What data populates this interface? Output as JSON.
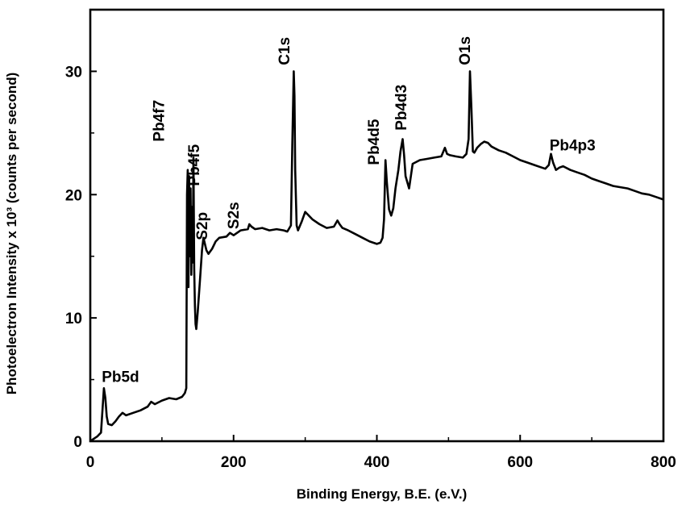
{
  "chart_data": {
    "type": "line",
    "xlabel": "Binding Energy, B.E. (e.V.)",
    "ylabel": "Photoelectron Intensity x 10³ (counts per second)",
    "xlim": [
      0,
      800
    ],
    "ylim": [
      0,
      35
    ],
    "xticks": [
      0,
      200,
      400,
      600,
      800
    ],
    "yticks": [
      0,
      10,
      20,
      30
    ],
    "x_tick_labels": [
      "0",
      "200",
      "400",
      "600",
      "800"
    ],
    "y_tick_labels": [
      "0",
      "10",
      "20",
      "30"
    ],
    "grid": false,
    "line_color": "#000000",
    "series": [
      {
        "x": [
          0,
          5,
          10,
          15,
          17,
          19,
          21,
          23,
          25,
          30,
          35,
          40,
          45,
          50,
          60,
          70,
          80,
          85,
          90,
          100,
          110,
          120,
          128,
          132,
          134,
          135,
          136,
          137,
          138,
          139,
          140,
          141,
          142,
          143,
          144,
          145,
          146,
          147,
          148,
          150,
          153,
          156,
          158,
          160,
          162,
          165,
          170,
          175,
          180,
          190,
          195,
          200,
          210,
          220,
          222,
          225,
          230,
          240,
          250,
          260,
          270,
          275,
          280,
          282,
          284,
          285,
          286,
          288,
          290,
          295,
          300,
          305,
          310,
          320,
          330,
          340,
          345,
          348,
          352,
          360,
          370,
          380,
          390,
          400,
          405,
          408,
          410,
          412,
          414,
          417,
          420,
          423,
          426,
          430,
          433,
          436,
          438,
          440,
          445,
          450,
          460,
          470,
          480,
          490,
          495,
          498,
          502,
          510,
          520,
          525,
          528,
          530,
          532,
          534,
          536,
          540,
          545,
          550,
          555,
          560,
          570,
          580,
          590,
          600,
          610,
          620,
          630,
          635,
          640,
          643,
          646,
          650,
          655,
          660,
          670,
          680,
          690,
          700,
          710,
          720,
          730,
          740,
          750,
          760,
          770,
          780,
          790,
          800
        ],
        "values": [
          0,
          0.2,
          0.4,
          0.7,
          2.5,
          4.3,
          3.5,
          2,
          1.4,
          1.3,
          1.6,
          2,
          2.3,
          2.1,
          2.3,
          2.5,
          2.8,
          3.2,
          3,
          3.3,
          3.5,
          3.4,
          3.6,
          3.9,
          4.3,
          20,
          22,
          12.5,
          21.5,
          15,
          20.5,
          13.5,
          19,
          14.5,
          23,
          14,
          11,
          9.5,
          9.1,
          10.5,
          13,
          15.5,
          16.5,
          16,
          15.5,
          15.2,
          15.6,
          16.2,
          16.5,
          16.6,
          16.9,
          16.7,
          17.1,
          17.2,
          17.6,
          17.4,
          17.2,
          17.3,
          17.1,
          17.2,
          17.1,
          17.0,
          17.5,
          24,
          30,
          28,
          22,
          17.5,
          17.1,
          17.8,
          18.6,
          18.3,
          18,
          17.6,
          17.3,
          17.4,
          17.9,
          17.6,
          17.3,
          17.1,
          16.8,
          16.5,
          16.2,
          16,
          16.1,
          16.5,
          18,
          22.8,
          21,
          18.8,
          18.3,
          18.9,
          20.5,
          22,
          23.5,
          24.5,
          23.2,
          21.5,
          20.5,
          22.5,
          22.8,
          22.9,
          23,
          23.1,
          23.8,
          23.3,
          23.2,
          23.1,
          23.0,
          23.3,
          24.5,
          30,
          27,
          23.5,
          23.4,
          23.8,
          24.1,
          24.3,
          24.2,
          23.9,
          23.6,
          23.4,
          23.1,
          22.8,
          22.6,
          22.4,
          22.2,
          22.1,
          22.4,
          23.3,
          22.6,
          22.0,
          22.2,
          22.3,
          22.0,
          21.8,
          21.6,
          21.3,
          21.1,
          20.9,
          20.7,
          20.6,
          20.5,
          20.3,
          20.1,
          20.0,
          19.8,
          19.6
        ]
      }
    ],
    "annotations": [
      {
        "text": "Pb5d",
        "x": 16,
        "y": 4.8,
        "rotate": false
      },
      {
        "text": "Pb4f7",
        "x": 103,
        "y": 24.3,
        "rotate": true
      },
      {
        "text": "Pb4f5",
        "x": 152,
        "y": 20.7,
        "rotate": true
      },
      {
        "text": "S2p",
        "x": 163,
        "y": 16.3,
        "rotate": true
      },
      {
        "text": "S2s",
        "x": 207,
        "y": 17.2,
        "rotate": true
      },
      {
        "text": "C1s",
        "x": 278,
        "y": 30.5,
        "rotate": true
      },
      {
        "text": "Pb4d5",
        "x": 403,
        "y": 22.4,
        "rotate": true
      },
      {
        "text": "Pb4d3",
        "x": 441,
        "y": 25.2,
        "rotate": true
      },
      {
        "text": "O1s",
        "x": 530,
        "y": 30.5,
        "rotate": true
      },
      {
        "text": "Pb4p3",
        "x": 641,
        "y": 23.6,
        "rotate": false
      }
    ]
  }
}
